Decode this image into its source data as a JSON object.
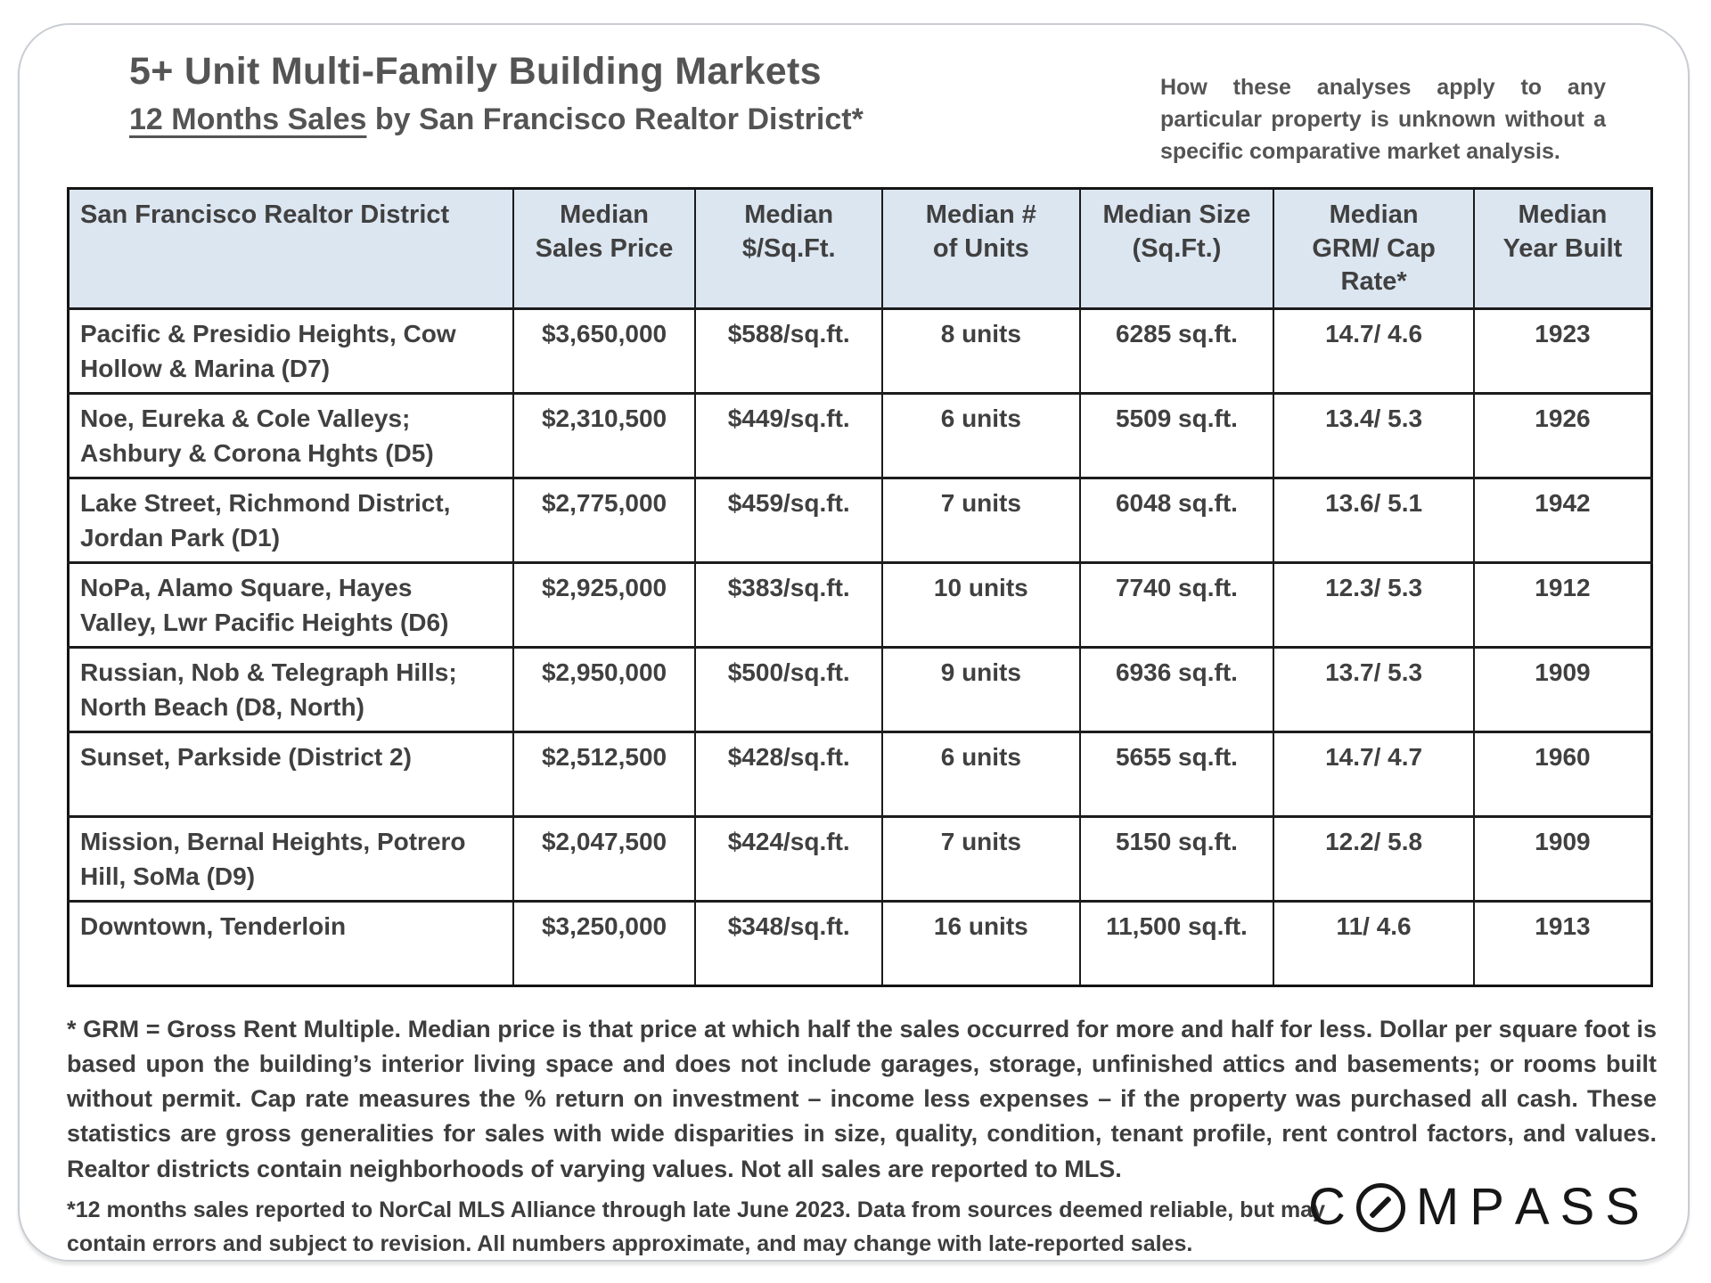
{
  "page": {
    "title": "5+ Unit Multi-Family Building Markets",
    "subtitle_underlined": "12 Months Sales",
    "subtitle_rest": " by San Francisco Realtor District*",
    "disclaimer": "How these analyses apply to any particular property is unknown without a specific comparative market analysis."
  },
  "chart_data": {
    "type": "table",
    "title": "5+ Unit Multi-Family Building Markets — 12 Months Sales by San Francisco Realtor District",
    "columns": [
      "San Francisco Realtor District",
      "Median\nSales Price",
      "Median\n$/Sq.Ft.",
      "Median #\nof Units",
      "Median Size\n(Sq.Ft.)",
      "Median\nGRM/ Cap\nRate*",
      "Median\nYear Built"
    ],
    "rows": [
      [
        "Pacific & Presidio Heights, Cow\nHollow & Marina (D7)",
        "$3,650,000",
        "$588/sq.ft.",
        "8 units",
        "6285 sq.ft.",
        "14.7/ 4.6",
        "1923"
      ],
      [
        "Noe, Eureka & Cole Valleys;\nAshbury & Corona Hghts (D5)",
        "$2,310,500",
        "$449/sq.ft.",
        "6 units",
        "5509 sq.ft.",
        "13.4/ 5.3",
        "1926"
      ],
      [
        "Lake Street, Richmond District,\nJordan Park (D1)",
        "$2,775,000",
        "$459/sq.ft.",
        "7 units",
        "6048 sq.ft.",
        "13.6/ 5.1",
        "1942"
      ],
      [
        "NoPa, Alamo Square, Hayes\nValley, Lwr Pacific Heights (D6)",
        "$2,925,000",
        "$383/sq.ft.",
        "10 units",
        "7740 sq.ft.",
        "12.3/ 5.3",
        "1912"
      ],
      [
        "Russian, Nob & Telegraph Hills;\nNorth Beach (D8, North)",
        "$2,950,000",
        "$500/sq.ft.",
        "9 units",
        "6936 sq.ft.",
        "13.7/ 5.3",
        "1909"
      ],
      [
        "Sunset, Parkside (District 2)",
        "$2,512,500",
        "$428/sq.ft.",
        "6 units",
        "5655 sq.ft.",
        "14.7/ 4.7",
        "1960"
      ],
      [
        "Mission, Bernal Heights, Potrero\nHill, SoMa (D9)",
        "$2,047,500",
        "$424/sq.ft.",
        "7 units",
        "5150 sq.ft.",
        "12.2/ 5.8",
        "1909"
      ],
      [
        "Downtown, Tenderloin",
        "$3,250,000",
        "$348/sq.ft.",
        "16 units",
        "11,500 sq.ft.",
        "11/ 4.6",
        "1913"
      ]
    ]
  },
  "footnotes": {
    "grm_note": "* GRM = Gross Rent Multiple. Median price is that price at which half the sales occurred for more and half for less. Dollar per square foot is based upon the building’s interior living space and does not include garages, storage, unfinished attics and basements; or rooms built without permit. Cap rate measures the % return on investment – income less expenses – if the property was purchased all cash. These statistics are gross generalities for sales with wide disparities in size, quality, condition, tenant profile, rent control factors, and values. Realtor districts contain neighborhoods of varying values. Not all sales are reported to MLS.",
    "sales_note": "*12 months sales reported to NorCal MLS Alliance through late June 2023. Data from sources deemed reliable, but may contain errors and subject to revision. All numbers approximate, and may change with late-reported sales."
  },
  "logo": {
    "brand": "COMPASS"
  },
  "colors": {
    "header_bg": "#dce6f1",
    "table_text": "#404040",
    "title_text": "#545454",
    "border": "#1c1c1c",
    "logo": "#161616"
  }
}
